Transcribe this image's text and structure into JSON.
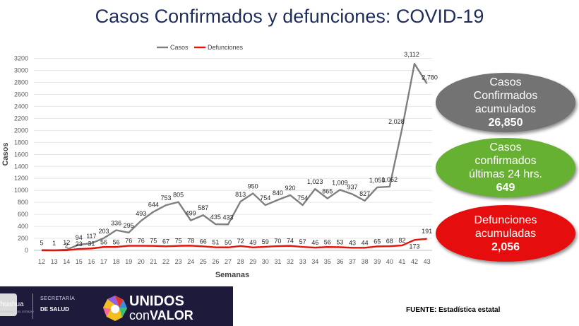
{
  "header": {
    "title": "Casos Confirmados y defunciones: COVID-19"
  },
  "chart_data": {
    "type": "line",
    "xlabel": "Semanas",
    "ylabel": "Casos",
    "ylim": [
      0,
      3200
    ],
    "yticks": [
      0,
      200,
      400,
      600,
      800,
      1000,
      1200,
      1400,
      1600,
      1800,
      2000,
      2200,
      2400,
      2600,
      2800,
      3000,
      3200
    ],
    "x": [
      12,
      13,
      14,
      15,
      16,
      17,
      18,
      19,
      20,
      21,
      22,
      23,
      24,
      25,
      26,
      27,
      28,
      29,
      30,
      31,
      32,
      33,
      34,
      35,
      36,
      37,
      38,
      39,
      40,
      41,
      42,
      43
    ],
    "legend_position": "top-center",
    "series": [
      {
        "name": "Casos",
        "color": "#7f7f7f",
        "values": [
          5,
          1,
          12,
          94,
          117,
          203,
          336,
          295,
          493,
          644,
          753,
          805,
          499,
          587,
          435,
          433,
          813,
          950,
          754,
          840,
          920,
          754,
          1023,
          865,
          1009,
          937,
          827,
          1050,
          1062,
          2028,
          3112,
          2780
        ],
        "labels": [
          "5",
          "1",
          "12",
          "94",
          "117",
          "203",
          "336",
          "295",
          "493",
          "644",
          "753",
          "805",
          "499",
          "587",
          "435",
          "433",
          "813",
          "950",
          "754",
          "840",
          "920",
          "754",
          "1,023",
          "865",
          "1,009",
          "937",
          "827",
          "1,050",
          "1,062",
          "2,028",
          "3,112",
          "2,780"
        ]
      },
      {
        "name": "Defunciones",
        "color": "#e3120b",
        "values": [
          0,
          0,
          2,
          23,
          31,
          56,
          56,
          76,
          76,
          75,
          67,
          75,
          78,
          66,
          51,
          50,
          72,
          49,
          59,
          70,
          74,
          57,
          46,
          56,
          53,
          43,
          44,
          65,
          68,
          82,
          173,
          191
        ],
        "labels": [
          "",
          "",
          "2",
          "23",
          "31",
          "56",
          "56",
          "76",
          "76",
          "75",
          "67",
          "75",
          "78",
          "66",
          "51",
          "50",
          "72",
          "49",
          "59",
          "70",
          "74",
          "57",
          "46",
          "56",
          "53",
          "43",
          "44",
          "65",
          "68",
          "82",
          "173",
          "191"
        ]
      }
    ]
  },
  "summary": [
    {
      "label": "Casos Confirmados acumulados",
      "value": "26,850"
    },
    {
      "label": "Casos confirmados últimas 24 hrs.",
      "value": "649"
    },
    {
      "label": "Defunciones acumuladas",
      "value": "2,056"
    }
  ],
  "footer": {
    "state": "ihuahua",
    "state_sub": "GOBIERNO DEL ESTADO",
    "secretaria": "SECRETARÍA",
    "salud": "DE SALUD",
    "logo_line1": "UNIDOS",
    "logo_line2a": "con",
    "logo_line2b": "VALOR",
    "source": "FUENTE: Estadística estatal"
  },
  "colors": {
    "title": "#1f2d5a",
    "casos": "#7f7f7f",
    "defunciones": "#e3120b",
    "bubble_gray": "#737373",
    "bubble_green": "#66b032",
    "bubble_red": "#e50d0d"
  }
}
